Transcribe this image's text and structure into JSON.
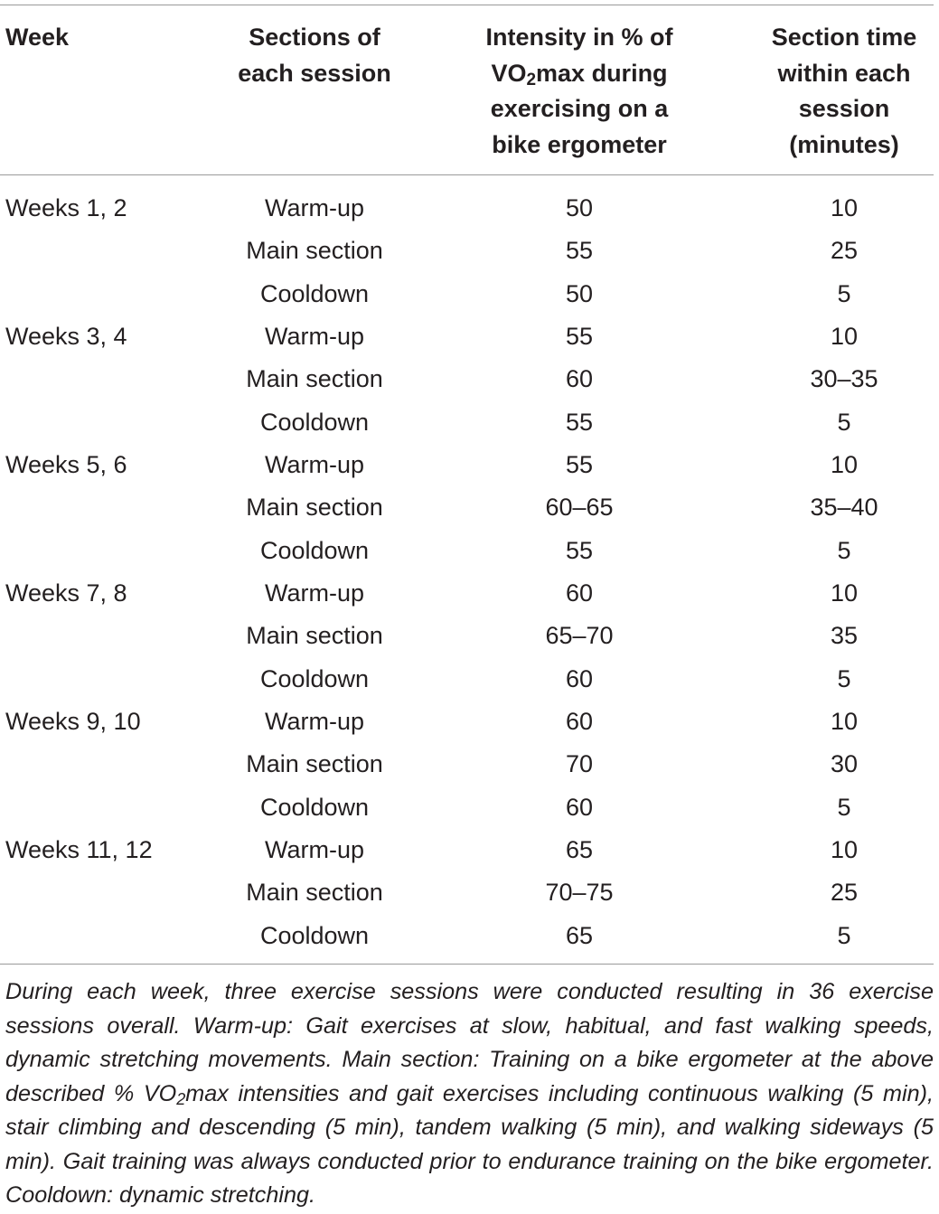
{
  "table": {
    "headers": {
      "week": "Week",
      "sections": [
        "Sections of",
        "each session"
      ],
      "intensity": {
        "line1": "Intensity in % of",
        "line2_pre": "VO",
        "line2_sub": "2",
        "line2_post": "max during",
        "line3": "exercising on a",
        "line4": "bike ergometer"
      },
      "section_time": [
        "Section time",
        "within each",
        "session",
        "(minutes)"
      ]
    },
    "rows": [
      {
        "week": "Weeks 1, 2",
        "section": "Warm-up",
        "intensity": "50",
        "time": "10"
      },
      {
        "week": "",
        "section": "Main section",
        "intensity": "55",
        "time": "25"
      },
      {
        "week": "",
        "section": "Cooldown",
        "intensity": "50",
        "time": "5"
      },
      {
        "week": "Weeks 3, 4",
        "section": "Warm-up",
        "intensity": "55",
        "time": "10"
      },
      {
        "week": "",
        "section": "Main section",
        "intensity": "60",
        "time": "30–35"
      },
      {
        "week": "",
        "section": "Cooldown",
        "intensity": "55",
        "time": "5"
      },
      {
        "week": "Weeks 5, 6",
        "section": "Warm-up",
        "intensity": "55",
        "time": "10"
      },
      {
        "week": "",
        "section": "Main section",
        "intensity": "60–65",
        "time": "35–40"
      },
      {
        "week": "",
        "section": "Cooldown",
        "intensity": "55",
        "time": "5"
      },
      {
        "week": "Weeks 7, 8",
        "section": "Warm-up",
        "intensity": "60",
        "time": "10"
      },
      {
        "week": "",
        "section": "Main section",
        "intensity": "65–70",
        "time": "35"
      },
      {
        "week": "",
        "section": "Cooldown",
        "intensity": "60",
        "time": "5"
      },
      {
        "week": "Weeks 9, 10",
        "section": "Warm-up",
        "intensity": "60",
        "time": "10"
      },
      {
        "week": "",
        "section": "Main section",
        "intensity": "70",
        "time": "30"
      },
      {
        "week": "",
        "section": "Cooldown",
        "intensity": "60",
        "time": "5"
      },
      {
        "week": "Weeks 11, 12",
        "section": "Warm-up",
        "intensity": "65",
        "time": "10"
      },
      {
        "week": "",
        "section": "Main section",
        "intensity": "70–75",
        "time": "25"
      },
      {
        "week": "",
        "section": "Cooldown",
        "intensity": "65",
        "time": "5"
      }
    ]
  },
  "footnote": {
    "part1": "During each week, three exercise sessions were conducted resulting in 36 exercise sessions overall. Warm-up: Gait exercises at slow, habitual, and fast walking speeds, dynamic stretching movements. Main section: Training on a bike ergome­ter at the above described % VO",
    "sub": "2",
    "part2": "max intensities and gait exercises including continuous walking (5 min), stair climbing and descending (5 min), tandem walking (5 min), and walking sideways (5 min). Gait training was always conducted prior to endurance training on the bike ergometer. Cooldown: dynamic stretching."
  }
}
